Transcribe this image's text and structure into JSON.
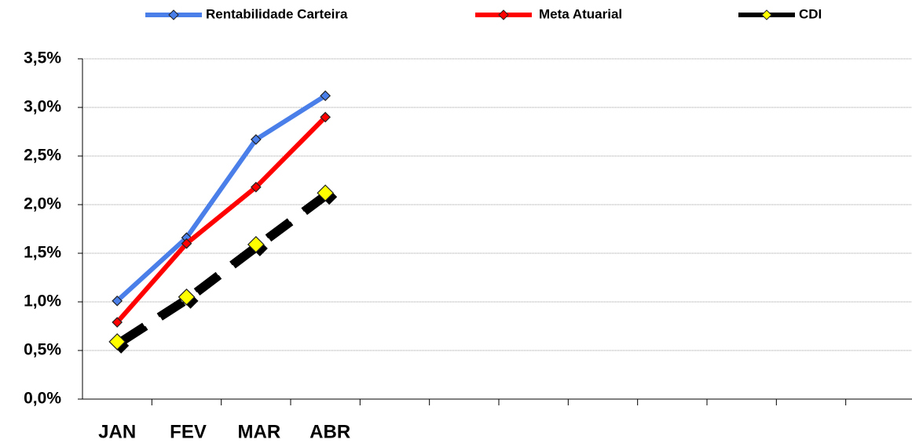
{
  "chart_data": {
    "type": "line",
    "categories": [
      "JAN",
      "FEV",
      "MAR",
      "ABR",
      null,
      null,
      null,
      null,
      null,
      null,
      null,
      null
    ],
    "series": [
      {
        "name": "Rentabilidade Carteira",
        "color": "#4a7ee8",
        "marker_color": "#4a7ee8",
        "dash": false,
        "values": [
          1.01,
          1.66,
          2.67,
          3.12,
          null,
          null,
          null,
          null,
          null,
          null,
          null,
          null
        ]
      },
      {
        "name": "Meta Atuarial",
        "color": "#ff0000",
        "marker_color": "#ff0000",
        "dash": false,
        "values": [
          0.79,
          1.6,
          2.18,
          2.9,
          null,
          null,
          null,
          null,
          null,
          null,
          null,
          null
        ]
      },
      {
        "name": "CDI",
        "color": "#000000",
        "marker_color": "#ffff00",
        "dash": true,
        "values": [
          0.59,
          1.05,
          1.59,
          2.12,
          null,
          null,
          null,
          null,
          null,
          null,
          null,
          null
        ]
      }
    ],
    "ylim": [
      0,
      3.5
    ],
    "yticks": [
      {
        "value": 0,
        "label": "0,0%"
      },
      {
        "value": 0.5,
        "label": "0,5%"
      },
      {
        "value": 1,
        "label": "1,0%"
      },
      {
        "value": 1.5,
        "label": "1,5%"
      },
      {
        "value": 2,
        "label": "2,0%"
      },
      {
        "value": 2.5,
        "label": "2,5%"
      },
      {
        "value": 3,
        "label": "3,0%"
      },
      {
        "value": 3.5,
        "label": "3,5%"
      }
    ],
    "grid": true,
    "legend": "top"
  }
}
